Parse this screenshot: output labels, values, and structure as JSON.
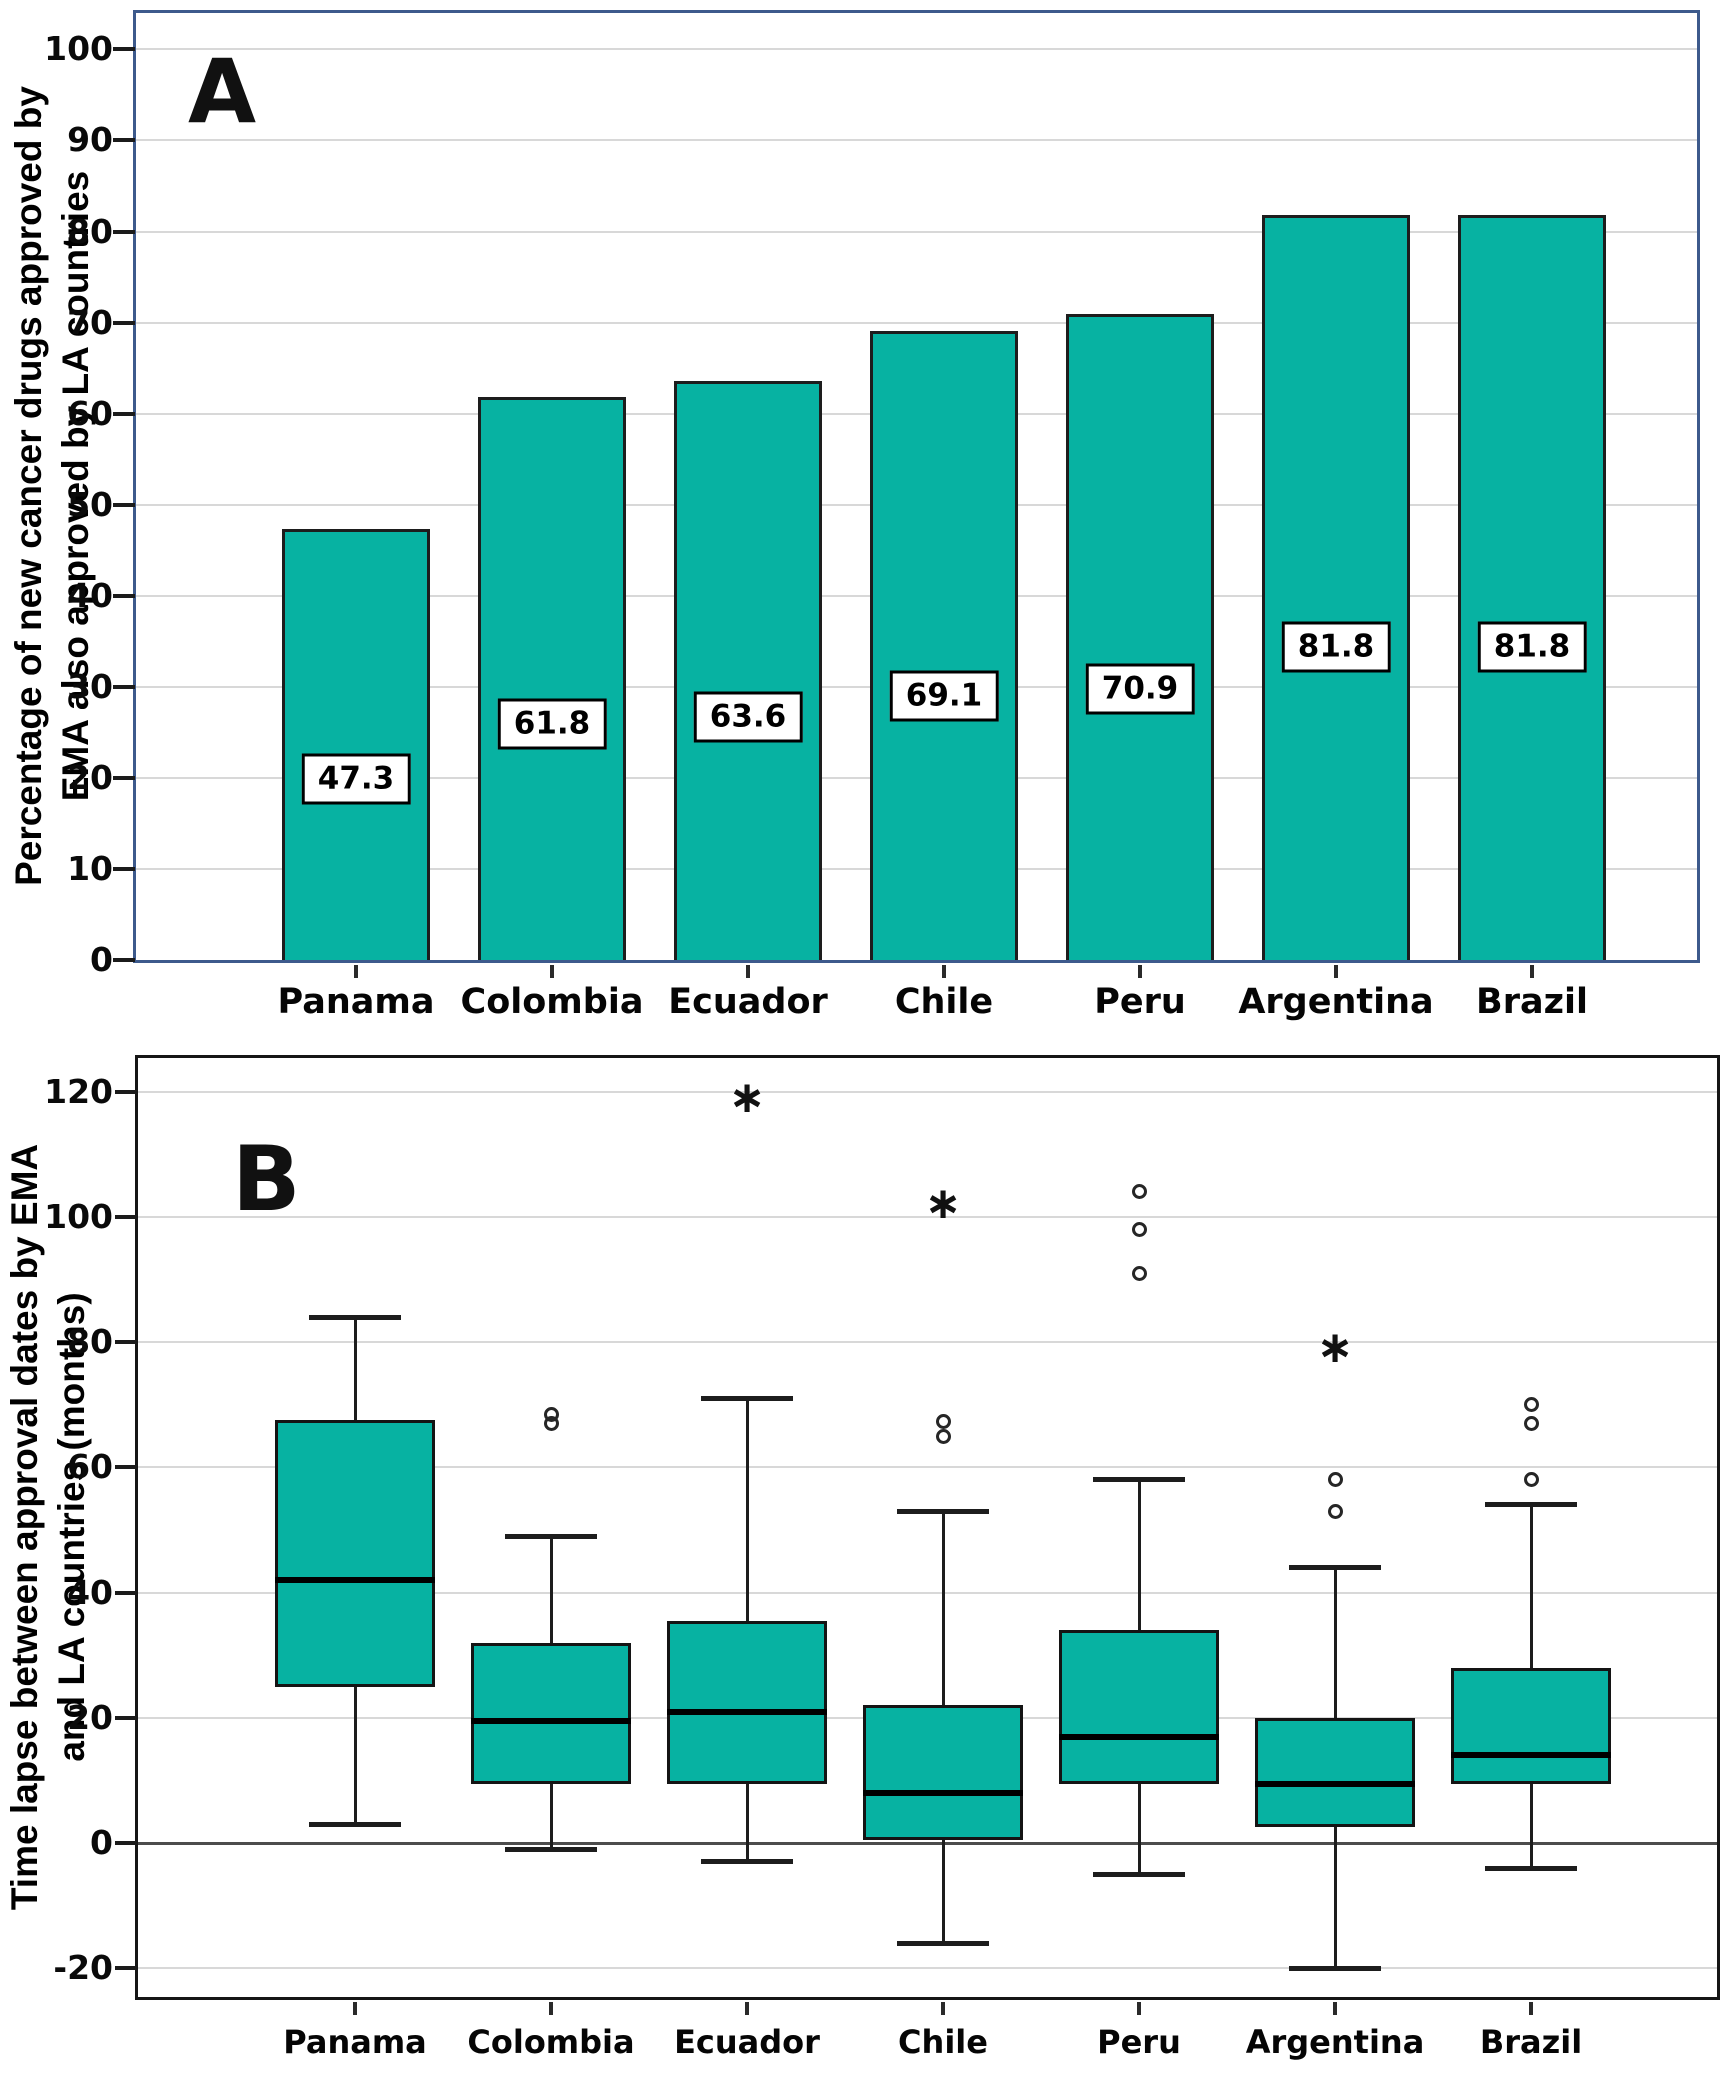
{
  "figure": {
    "panels": [
      {
        "id": "A",
        "panel_label": "A",
        "ylabel_line1": "Percentage of new cancer drugs approved by",
        "ylabel_line2": "EMA also approved by LA countries"
      },
      {
        "id": "B",
        "panel_label": "B",
        "ylabel_line1": "Time lapse between approval dates by EMA",
        "ylabel_line2": "and LA countries (months)"
      }
    ]
  },
  "chart_data": [
    {
      "type": "bar",
      "panel": "A",
      "title": "",
      "xlabel": "",
      "ylabel": "Percentage of new cancer drugs approved by EMA also approved by LA countries",
      "categories": [
        "Panama",
        "Colombia",
        "Ecuador",
        "Chile",
        "Peru",
        "Argentina",
        "Brazil"
      ],
      "values": [
        47.3,
        61.8,
        63.6,
        69.1,
        70.9,
        81.8,
        81.8
      ],
      "data_labels": [
        "47.3",
        "61.8",
        "63.6",
        "69.1",
        "70.9",
        "81.8",
        "81.8"
      ],
      "yticks": [
        0,
        10,
        20,
        30,
        40,
        50,
        60,
        70,
        80,
        90,
        100
      ],
      "ylim": [
        0,
        104
      ],
      "grid": true,
      "legend": "none",
      "colors": {
        "bar_fill": "#07B2A2",
        "bar_border": "#1d1d1d",
        "frame": "#3D5A8C",
        "gridline": "#d8d8d8"
      }
    },
    {
      "type": "box",
      "panel": "B",
      "title": "",
      "xlabel": "",
      "ylabel": "Time lapse between approval dates by EMA and LA countries (months)",
      "categories": [
        "Panama",
        "Colombia",
        "Ecuador",
        "Chile",
        "Peru",
        "Argentina",
        "Brazil"
      ],
      "series": [
        {
          "name": "Panama",
          "whisker_low": 3,
          "q1": 25,
          "median": 42,
          "q3": 67.5,
          "whisker_high": 84,
          "outliers_circle": [],
          "outliers_star": []
        },
        {
          "name": "Colombia",
          "whisker_low": -1,
          "q1": 9.5,
          "median": 19.5,
          "q3": 32,
          "whisker_high": 49,
          "outliers_circle": [
            67,
            68.5
          ],
          "outliers_star": []
        },
        {
          "name": "Ecuador",
          "whisker_low": -3,
          "q1": 9.5,
          "median": 21,
          "q3": 35.5,
          "whisker_high": 71,
          "outliers_circle": [],
          "outliers_star": [
            119
          ]
        },
        {
          "name": "Chile",
          "whisker_low": -16,
          "q1": 0.5,
          "median": 8,
          "q3": 22,
          "whisker_high": 53,
          "outliers_circle": [
            65,
            67.3
          ],
          "outliers_star": [
            102
          ]
        },
        {
          "name": "Peru",
          "whisker_low": -5,
          "q1": 9.5,
          "median": 17,
          "q3": 34,
          "whisker_high": 58,
          "outliers_circle": [
            91,
            98,
            104
          ],
          "outliers_star": []
        },
        {
          "name": "Argentina",
          "whisker_low": -20,
          "q1": 2.5,
          "median": 9.5,
          "q3": 20,
          "whisker_high": 44,
          "outliers_circle": [
            53,
            58
          ],
          "outliers_star": [
            79
          ]
        },
        {
          "name": "Brazil",
          "whisker_low": -4,
          "q1": 9.5,
          "median": 14,
          "q3": 28,
          "whisker_high": 54,
          "outliers_circle": [
            58,
            67,
            70
          ],
          "outliers_star": []
        }
      ],
      "yticks": [
        -20,
        0,
        20,
        40,
        60,
        80,
        100,
        120
      ],
      "ylim": [
        -24.6,
        125.4
      ],
      "grid": true,
      "legend": "none",
      "markers": {
        "outlier": "circle",
        "extreme": "asterisk-star"
      },
      "colors": {
        "box_fill": "#07B2A2",
        "box_border": "#141414",
        "median": "#000000",
        "whisker": "#1d1d1d",
        "frame": "#161616",
        "gridline": "#d8d8d8",
        "zero_line": "#4c4c4c"
      }
    }
  ]
}
